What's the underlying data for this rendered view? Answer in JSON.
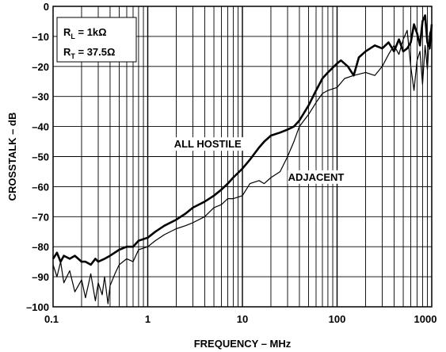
{
  "chart_data": {
    "type": "line",
    "title": "",
    "xlabel": "FREQUENCY – MHz",
    "ylabel": "CROSSTALK – dB",
    "x_scale": "log",
    "xlim": [
      0.1,
      1000
    ],
    "ylim": [
      -100,
      0
    ],
    "grid": true,
    "x_ticks": [
      "0.1",
      "1",
      "10",
      "100",
      "1000"
    ],
    "y_ticks": [
      "0",
      "–10",
      "–20",
      "–30",
      "–40",
      "–50",
      "–60",
      "–70",
      "–80",
      "–90",
      "–100"
    ],
    "legend_box": {
      "line1": {
        "main": "R",
        "sub": "L",
        "rest": " = 1kΩ"
      },
      "line2": {
        "main": "R",
        "sub": "T",
        "rest": " = 37.5Ω"
      }
    },
    "series": [
      {
        "name": "ALL HOSTILE",
        "stroke_width": 2.6,
        "x": [
          0.1,
          0.11,
          0.12,
          0.13,
          0.15,
          0.17,
          0.2,
          0.22,
          0.25,
          0.28,
          0.3,
          0.35,
          0.4,
          0.5,
          0.6,
          0.7,
          0.8,
          1,
          1.2,
          1.5,
          2,
          2.5,
          3,
          4,
          5,
          6,
          7,
          8,
          10,
          12,
          15,
          17,
          20,
          25,
          30,
          35,
          40,
          50,
          60,
          70,
          80,
          100,
          110,
          130,
          150,
          170,
          200,
          250,
          300,
          350,
          400,
          450,
          500,
          550,
          600,
          650,
          700,
          750,
          800,
          850,
          900,
          950,
          1000
        ],
        "y": [
          -84,
          -82,
          -85,
          -83,
          -84,
          -83,
          -85,
          -85,
          -86,
          -84,
          -85,
          -84,
          -83,
          -81,
          -80,
          -80,
          -78,
          -77,
          -75,
          -73,
          -71,
          -69,
          -67,
          -65,
          -63,
          -61,
          -59,
          -57,
          -54,
          -51,
          -47,
          -45,
          -43,
          -42,
          -41,
          -40,
          -38,
          -33,
          -28,
          -24,
          -22,
          -19,
          -18,
          -20,
          -23,
          -17,
          -15,
          -13,
          -14,
          -12,
          -15,
          -11,
          -15,
          -14,
          -12,
          -6,
          -9,
          -13,
          -5,
          -3,
          -12,
          -14,
          -6
        ]
      },
      {
        "name": "ADJACENT",
        "stroke_width": 1.2,
        "x": [
          0.1,
          0.11,
          0.12,
          0.13,
          0.15,
          0.17,
          0.2,
          0.22,
          0.25,
          0.28,
          0.3,
          0.33,
          0.35,
          0.38,
          0.4,
          0.45,
          0.5,
          0.6,
          0.7,
          0.8,
          1,
          1.2,
          1.5,
          2,
          2.5,
          3,
          4,
          5,
          6,
          7,
          8,
          10,
          12,
          15,
          17,
          20,
          25,
          30,
          35,
          40,
          50,
          60,
          70,
          80,
          100,
          120,
          150,
          200,
          250,
          300,
          350,
          400,
          450,
          500,
          550,
          600,
          650,
          700,
          750,
          800,
          850,
          900,
          950,
          1000
        ],
        "y": [
          -86,
          -90,
          -85,
          -92,
          -88,
          -95,
          -91,
          -97,
          -89,
          -98,
          -92,
          -96,
          -90,
          -99,
          -93,
          -89,
          -86,
          -84,
          -85,
          -81,
          -80,
          -78,
          -76,
          -74,
          -73,
          -72,
          -70,
          -67,
          -66,
          -64,
          -64,
          -63,
          -59,
          -58,
          -59,
          -57,
          -55,
          -50,
          -45,
          -40,
          -36,
          -32,
          -29,
          -28,
          -27,
          -24,
          -23,
          -22,
          -23,
          -20,
          -16,
          -13,
          -16,
          -11,
          -8,
          -20,
          -28,
          -18,
          -15,
          -26,
          -13,
          -21,
          -9,
          -7
        ]
      }
    ],
    "annotations": [
      {
        "text": "ALL HOSTILE",
        "x": 4.3,
        "y": -47
      },
      {
        "text": "ADJACENT",
        "x": 60,
        "y": -58
      }
    ]
  }
}
